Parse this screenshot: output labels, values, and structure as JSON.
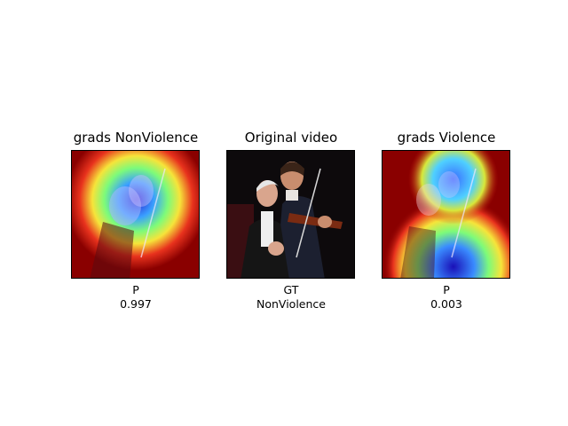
{
  "panels": [
    {
      "title": "grads NonViolence",
      "caption_line1": "P",
      "caption_line2": "0.997",
      "image": "gradcam-heatmap-overlay"
    },
    {
      "title": "Original video",
      "caption_line1": "GT",
      "caption_line2": "NonViolence",
      "image": "video-frame-violinists"
    },
    {
      "title": "grads Violence",
      "caption_line1": "P",
      "caption_line2": "0.003",
      "image": "gradcam-heatmap-overlay"
    }
  ]
}
